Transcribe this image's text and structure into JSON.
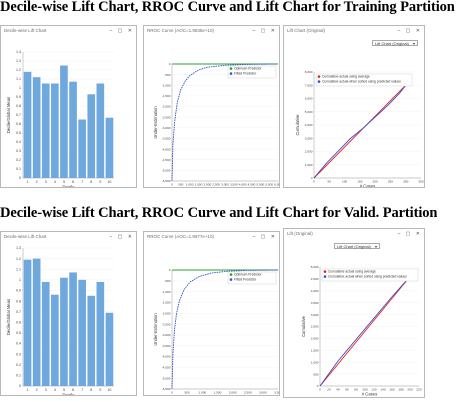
{
  "headings": {
    "training": "Decile-wise Lift Chart, RROC Curve and Lift Chart for Training Partition",
    "validation": "Decile-wise Lift Chart, RROC Curve and Lift Chart for Valid. Partition"
  },
  "window_controls": "– ▢ ✕",
  "training": {
    "decile": {
      "title": "Decile-wise Lift Chart",
      "chart_data": {
        "type": "bar",
        "categories": [
          "1",
          "2",
          "3",
          "4",
          "5",
          "6",
          "7",
          "8",
          "9",
          "10"
        ],
        "values": [
          1.18,
          1.12,
          1.05,
          1.05,
          1.25,
          1.07,
          0.65,
          0.93,
          1.05,
          0.67
        ],
        "xlabel": "Decile",
        "ylabel": "Decile/Global Mean",
        "ylim": [
          0,
          1.4
        ],
        "yticks": [
          "0",
          "0.1",
          "0.2",
          "0.3",
          "0.4",
          "0.5",
          "0.6",
          "0.7",
          "0.8",
          "0.9",
          "1",
          "1.1",
          "1.2",
          "1.3",
          "1.4"
        ]
      }
    },
    "rroc": {
      "title": "RROC Curve (AOC=1.9835e+10)",
      "chart_data": {
        "type": "line",
        "xlabel": "Over-Estimation",
        "ylabel": "Under-Estimation",
        "xticks": [
          "0",
          "500",
          "1,000",
          "1,500",
          "2,000",
          "2,500",
          "3,000",
          "3,500",
          "4,000",
          "4,500",
          "5,000",
          "5,500",
          "6,000"
        ],
        "yticks": [
          "0",
          "-500",
          "-1,000",
          "-1,500",
          "-2,000",
          "-2,500",
          "-3,000",
          "-3,500",
          "-4,000",
          "-4,500",
          "-5,000",
          "-5,500"
        ],
        "xlim": [
          0,
          6000
        ],
        "ylim": [
          -5500,
          0
        ],
        "series": [
          {
            "name": "Optimum Predictor",
            "color": "#2ca02c",
            "x": [
              0,
              6000
            ],
            "y": [
              0,
              0
            ]
          },
          {
            "name": "Fitted Predictor",
            "color": "#3355cc",
            "x": [
              0,
              50,
              150,
              300,
              500,
              750,
              1000,
              1500,
              2000,
              3000,
              4000,
              5000,
              6000
            ],
            "y": [
              -5500,
              -3800,
              -2700,
              -1800,
              -1200,
              -800,
              -550,
              -280,
              -150,
              -60,
              -25,
              -8,
              0
            ]
          }
        ],
        "legend": "top-right"
      }
    },
    "lift": {
      "title": "Lift Chart (Original)",
      "dropdown": "Lift Chart (Original)",
      "chart_data": {
        "type": "line",
        "xlabel": "# Cases",
        "ylabel": "Cumulative",
        "xticks": [
          "0",
          "50",
          "100",
          "150",
          "200",
          "250",
          "300",
          "350"
        ],
        "yticks": [
          "0",
          "1,000",
          "2,000",
          "3,000",
          "4,000",
          "5,000",
          "6,000",
          "7,000",
          "8,000"
        ],
        "xlim": [
          0,
          350
        ],
        "ylim": [
          0,
          8000
        ],
        "series": [
          {
            "name": "Cumulative actual using average",
            "color": "#e8231f",
            "x": [
              0,
              300
            ],
            "y": [
              0,
              7000
            ]
          },
          {
            "name": "Cumulative actual when sorted using predicted values",
            "color": "#3a4fc8",
            "x": [
              0,
              40,
              80,
              120,
              160,
              200,
              240,
              280,
              300
            ],
            "y": [
              0,
              1100,
              2050,
              3000,
              3750,
              4600,
              5450,
              6400,
              7000
            ]
          }
        ],
        "legend": "top-left"
      }
    }
  },
  "validation": {
    "decile": {
      "title": "Decile-wise Lift Chart",
      "chart_data": {
        "type": "bar",
        "categories": [
          "1",
          "2",
          "3",
          "4",
          "5",
          "6",
          "7",
          "8",
          "9",
          "10"
        ],
        "values": [
          1.19,
          1.2,
          0.98,
          0.86,
          1.02,
          1.07,
          1.0,
          0.85,
          0.98,
          0.69
        ],
        "xlabel": "Decile",
        "ylabel": "Decile/Global Mean",
        "ylim": [
          0,
          1.3
        ],
        "yticks": [
          "0",
          "0.1",
          "0.2",
          "0.3",
          "0.4",
          "0.5",
          "0.6",
          "0.7",
          "0.8",
          "0.9",
          "1",
          "1.1",
          "1.2",
          "1.3"
        ]
      }
    },
    "rroc": {
      "title": "RROC Curve (AOC=1.8977e+10)",
      "chart_data": {
        "type": "line",
        "xlabel": "Over-Estimation",
        "ylabel": "Under-Estimation",
        "xticks": [
          "0",
          "500",
          "1,000",
          "1,500",
          "2,000",
          "2,500",
          "3,000",
          "3,500"
        ],
        "yticks": [
          "0",
          "-500",
          "-1,000",
          "-1,500",
          "-2,000",
          "-2,500",
          "-3,000",
          "-3,500",
          "-4,000",
          "-4,500",
          "-5,000",
          "-5,500"
        ],
        "xlim": [
          0,
          3500
        ],
        "ylim": [
          -5500,
          0
        ],
        "series": [
          {
            "name": "Optimum Predictor",
            "color": "#2ca02c",
            "x": [
              0,
              3500
            ],
            "y": [
              0,
              0
            ]
          },
          {
            "name": "Fitted Predictor",
            "color": "#3355cc",
            "x": [
              0,
              30,
              80,
              150,
              250,
              400,
              600,
              900,
              1300,
              1800,
              2500,
              3500
            ],
            "y": [
              -5500,
              -3900,
              -2800,
              -2000,
              -1400,
              -900,
              -550,
              -300,
              -140,
              -60,
              -15,
              0
            ]
          }
        ],
        "legend": "top-right"
      }
    },
    "lift": {
      "title": "Lift (Original)",
      "dropdown": "Lift Chart (Original)",
      "chart_data": {
        "type": "line",
        "xlabel": "# Cases",
        "ylabel": "Cumulative",
        "xticks": [
          "0",
          "20",
          "40",
          "60",
          "80",
          "100",
          "120",
          "140",
          "160",
          "180",
          "200",
          "220"
        ],
        "yticks": [
          "0",
          "500",
          "1,000",
          "1,500",
          "2,000",
          "2,500",
          "3,000",
          "3,500",
          "4,000",
          "4,500",
          "5,000"
        ],
        "xlim": [
          0,
          220
        ],
        "ylim": [
          0,
          5000
        ],
        "series": [
          {
            "name": "Cumulative actual using average",
            "color": "#e8231f",
            "x": [
              0,
              200
            ],
            "y": [
              0,
              4600
            ]
          },
          {
            "name": "Cumulative actual when sorted using predicted values",
            "color": "#3a4fc8",
            "x": [
              0,
              40,
              80,
              120,
              160,
              200
            ],
            "y": [
              0,
              1050,
              1950,
              2850,
              3750,
              4600
            ]
          }
        ],
        "legend": "top-left"
      }
    }
  }
}
